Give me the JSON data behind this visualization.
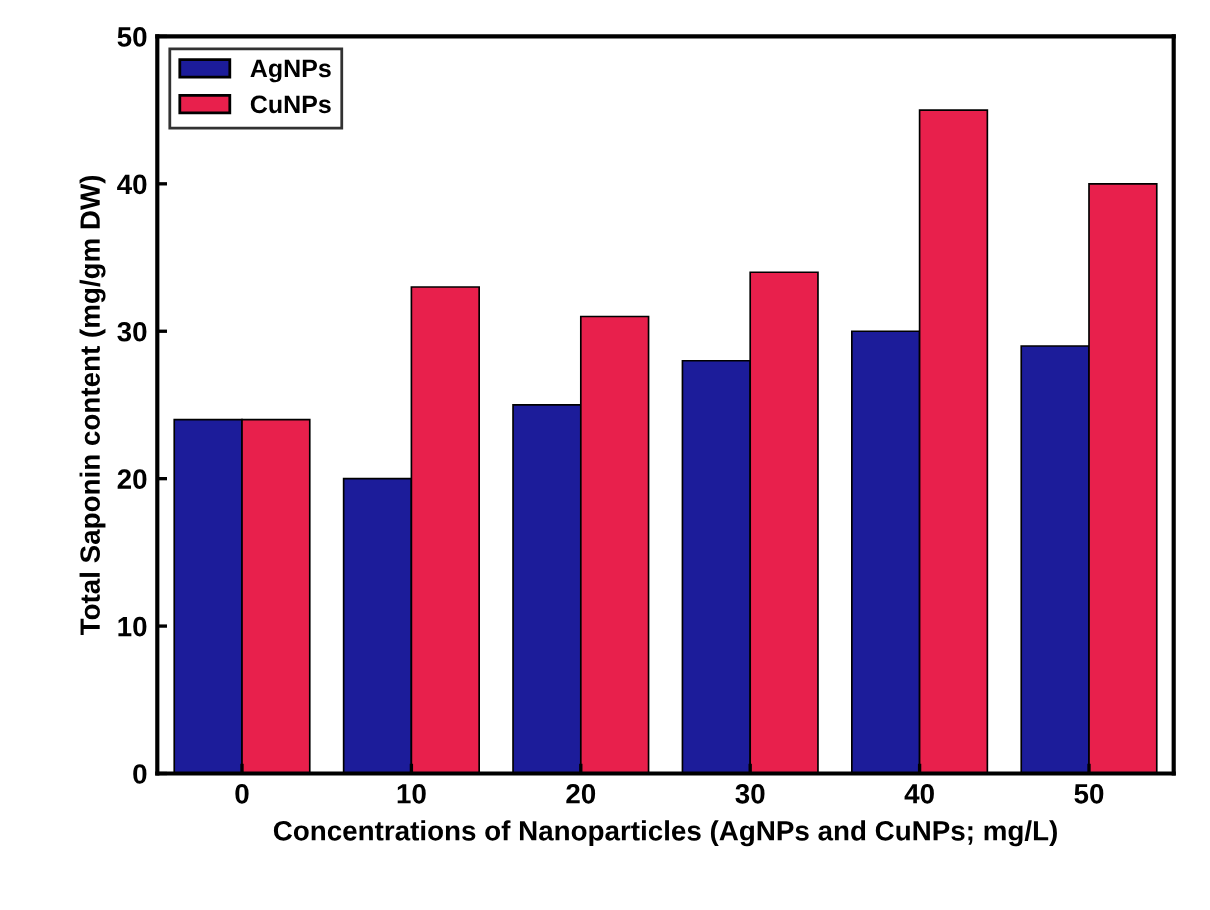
{
  "chart_data": {
    "type": "bar",
    "xlabel": "Concentrations of Nanoparticles (AgNPs and CuNPs; mg/L)",
    "ylabel": "Total Saponin content (mg/gm DW)",
    "categories": [
      "0",
      "10",
      "20",
      "30",
      "40",
      "50"
    ],
    "series": [
      {
        "name": "AgNPs",
        "color": "#1c1c9a",
        "values": [
          24,
          20,
          25,
          28,
          30,
          29
        ]
      },
      {
        "name": "CuNPs",
        "color": "#e8204c",
        "values": [
          24,
          33,
          31,
          34,
          45,
          40
        ]
      }
    ],
    "ylim": [
      0,
      50
    ],
    "yticks": [
      0,
      10,
      20,
      30,
      40,
      50
    ],
    "grid": false,
    "legend": "top left"
  }
}
